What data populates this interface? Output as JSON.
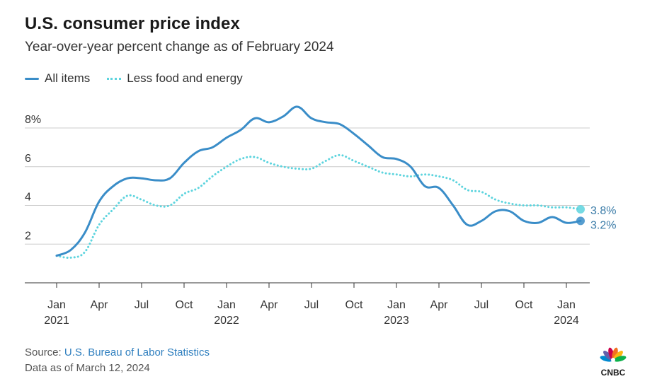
{
  "header": {
    "title": "U.S. consumer price index",
    "subtitle": "Year-over-year percent change as of February 2024"
  },
  "legend": {
    "all_items": "All items",
    "core": "Less food and energy"
  },
  "footer": {
    "source_prefix": "Source: ",
    "source_link": "U.S. Bureau of Labor Statistics",
    "data_date": "Data as of March 12, 2024",
    "logo_text": "CNBC"
  },
  "colors": {
    "all_items": "#3a8dc8",
    "core": "#5dd4de",
    "grid": "#cccccc",
    "axis_text": "#333333",
    "end_label": "#3b7ca8"
  },
  "chart_data": {
    "type": "line",
    "title": "U.S. consumer price index",
    "subtitle": "Year-over-year percent change as of February 2024",
    "ylim": [
      0,
      9.5
    ],
    "yticks": [
      2,
      4,
      6,
      8
    ],
    "ytick_labels": [
      "2",
      "4",
      "6",
      "8%"
    ],
    "grid": true,
    "legend_position": "top-left",
    "x_ticks": [
      {
        "date": "2021-01",
        "month": "Jan",
        "year": "2021"
      },
      {
        "date": "2021-04",
        "month": "Apr",
        "year": ""
      },
      {
        "date": "2021-07",
        "month": "Jul",
        "year": ""
      },
      {
        "date": "2021-10",
        "month": "Oct",
        "year": ""
      },
      {
        "date": "2022-01",
        "month": "Jan",
        "year": "2022"
      },
      {
        "date": "2022-04",
        "month": "Apr",
        "year": ""
      },
      {
        "date": "2022-07",
        "month": "Jul",
        "year": ""
      },
      {
        "date": "2022-10",
        "month": "Oct",
        "year": ""
      },
      {
        "date": "2023-01",
        "month": "Jan",
        "year": "2023"
      },
      {
        "date": "2023-04",
        "month": "Apr",
        "year": ""
      },
      {
        "date": "2023-07",
        "month": "Jul",
        "year": ""
      },
      {
        "date": "2023-10",
        "month": "Oct",
        "year": ""
      },
      {
        "date": "2024-01",
        "month": "Jan",
        "year": "2024"
      }
    ],
    "x": [
      "2021-01",
      "2021-02",
      "2021-03",
      "2021-04",
      "2021-05",
      "2021-06",
      "2021-07",
      "2021-08",
      "2021-09",
      "2021-10",
      "2021-11",
      "2021-12",
      "2022-01",
      "2022-02",
      "2022-03",
      "2022-04",
      "2022-05",
      "2022-06",
      "2022-07",
      "2022-08",
      "2022-09",
      "2022-10",
      "2022-11",
      "2022-12",
      "2023-01",
      "2023-02",
      "2023-03",
      "2023-04",
      "2023-05",
      "2023-06",
      "2023-07",
      "2023-08",
      "2023-09",
      "2023-10",
      "2023-11",
      "2023-12",
      "2024-01",
      "2024-02"
    ],
    "series": [
      {
        "name": "All items",
        "end_label": "3.2%",
        "values": [
          1.4,
          1.7,
          2.6,
          4.2,
          5.0,
          5.4,
          5.4,
          5.3,
          5.4,
          6.2,
          6.8,
          7.0,
          7.5,
          7.9,
          8.5,
          8.3,
          8.6,
          9.1,
          8.5,
          8.3,
          8.2,
          7.7,
          7.1,
          6.5,
          6.4,
          6.0,
          5.0,
          4.9,
          4.0,
          3.0,
          3.2,
          3.7,
          3.7,
          3.2,
          3.1,
          3.4,
          3.1,
          3.2
        ]
      },
      {
        "name": "Less food and energy",
        "end_label": "3.8%",
        "values": [
          1.4,
          1.3,
          1.6,
          3.0,
          3.8,
          4.5,
          4.3,
          4.0,
          4.0,
          4.6,
          4.9,
          5.5,
          6.0,
          6.4,
          6.5,
          6.2,
          6.0,
          5.9,
          5.9,
          6.3,
          6.6,
          6.3,
          6.0,
          5.7,
          5.6,
          5.5,
          5.6,
          5.5,
          5.3,
          4.8,
          4.7,
          4.3,
          4.1,
          4.0,
          4.0,
          3.9,
          3.9,
          3.8
        ]
      }
    ]
  }
}
